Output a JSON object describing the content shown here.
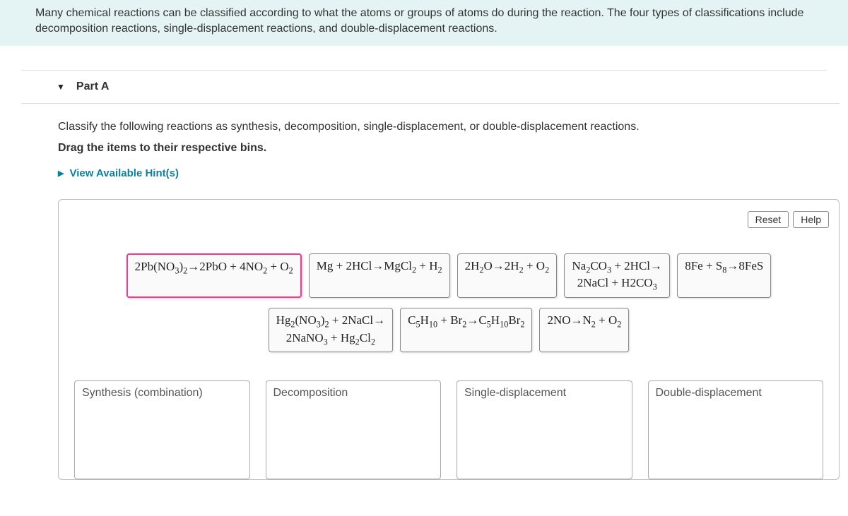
{
  "intro": "Many chemical reactions can be classified according to what the atoms or groups of atoms do during the reaction. The four four types of classifications include decomposition reactions, single-displacement reactions, and double-displacement reactions.",
  "intro_line1": "Many chemical reactions can be classified according to what the atoms or groups of atoms do during the reaction. The four types of classifications include",
  "intro_line2": "decomposition reactions, single-displacement reactions, and double-displacement reactions.",
  "part": {
    "label": "Part A"
  },
  "question": {
    "text": "Classify the following reactions as synthesis, decomposition, single-displacement, or double-displacement reactions.",
    "instruction": "Drag the items to their respective bins.",
    "hints_label": "View Available Hint(s)"
  },
  "buttons": {
    "reset": "Reset",
    "help": "Help"
  },
  "items": {
    "r1": "2Pb(NO₃)₂→2PbO + 4NO₂ + O₂",
    "r2": "Mg + 2HCl→MgCl₂ + H₂",
    "r3": "2H₂O→2H₂ + O₂",
    "r4_l1": "Na₂CO₃ + 2HCl→",
    "r4_l2": "2NaCl + H2CO₃",
    "r5": "8Fe + S₈→8FeS",
    "r6_l1": "Hg₂(NO₃)₂ + 2NaCl→",
    "r6_l2": "2NaNO₃ + Hg₂Cl₂",
    "r7": "C₅H₁₀ + Br₂→C₅H₁₀Br₂",
    "r8": "2NO→N₂ + O₂"
  },
  "bins": {
    "b1": "Synthesis (combination)",
    "b2": "Decomposition",
    "b3": "Single-displacement",
    "b4": "Double-displacement"
  },
  "colors": {
    "intro_bg": "#e4f3f4",
    "hint_color": "#0b7f9c",
    "selected_border": "#e83e8c"
  }
}
